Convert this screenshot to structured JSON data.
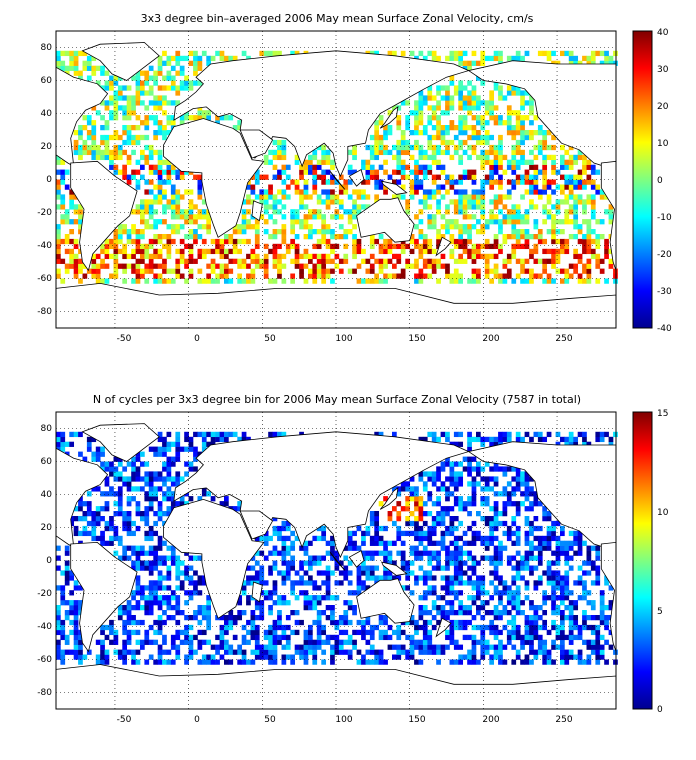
{
  "panels": [
    {
      "title": "3x3 degree bin–averaged 2006 May mean Surface Zonal Velocity, cm/s",
      "xticks": [
        "-50",
        "0",
        "50",
        "100",
        "150",
        "200",
        "250"
      ],
      "yticks": [
        "80",
        "60",
        "40",
        "20",
        "0",
        "-20",
        "-40",
        "-60",
        "-80"
      ],
      "colorbar": {
        "ticks": [
          "40",
          "30",
          "20",
          "10",
          "0",
          "-10",
          "-20",
          "-30",
          "-40"
        ],
        "min": -40,
        "max": 40
      },
      "grid": true,
      "colormap": "jet",
      "xlim": [
        -90,
        290
      ],
      "ylim": [
        -90,
        90
      ]
    },
    {
      "title": "N of cycles per 3x3 degree bin for 2006 May mean Surface Zonal Velocity (7587 in total)",
      "xticks": [
        "-50",
        "0",
        "50",
        "100",
        "150",
        "200",
        "250"
      ],
      "yticks": [
        "80",
        "60",
        "40",
        "20",
        "0",
        "-20",
        "-40",
        "-60",
        "-80"
      ],
      "colorbar": {
        "ticks": [
          "15",
          "10",
          "5",
          "0"
        ],
        "min": 0,
        "max": 15
      },
      "grid": true,
      "colormap": "jet",
      "xlim": [
        -90,
        290
      ],
      "ylim": [
        -90,
        90
      ]
    }
  ]
}
